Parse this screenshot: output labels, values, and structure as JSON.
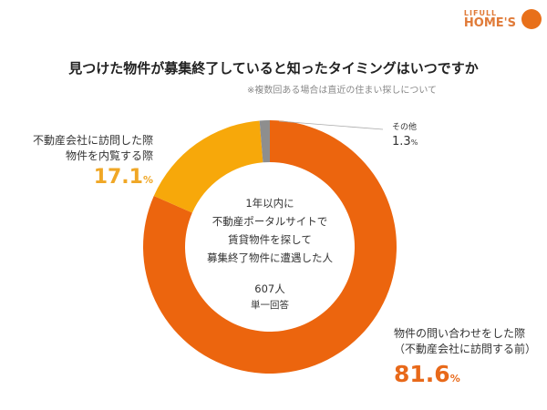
{
  "logo": {
    "line1": "LIFULL",
    "line2": "HOME'S"
  },
  "title": "見つけた物件が募集終了していると知ったタイミングはいつですか",
  "subtitle": "※複数回ある場合は直近の住まい探しについて",
  "chart_data": {
    "type": "pie",
    "title": "見つけた物件が募集終了していると知ったタイミングはいつですか",
    "subtitle": "※複数回ある場合は直近の住まい探しについて",
    "donut": true,
    "center_text": [
      "1年以内に",
      "不動産ポータルサイトで",
      "賃貸物件を探して",
      "募集終了物件に遭遇した人"
    ],
    "sample_size": "607人",
    "answer_type": "単一回答",
    "slices": [
      {
        "label": [
          "物件の問い合わせをした際",
          "（不動産会社に訪問する前）"
        ],
        "value": 81.6,
        "value_text": "81.6",
        "color": "#EC650E"
      },
      {
        "label": [
          "不動産会社に訪問した際",
          "物件を内覧する際"
        ],
        "value": 17.1,
        "value_text": "17.1",
        "color": "#F7A80A"
      },
      {
        "label": [
          "その他"
        ],
        "value": 1.3,
        "value_text": "1.3",
        "color": "#8E8E8E"
      }
    ],
    "unit": "%"
  }
}
